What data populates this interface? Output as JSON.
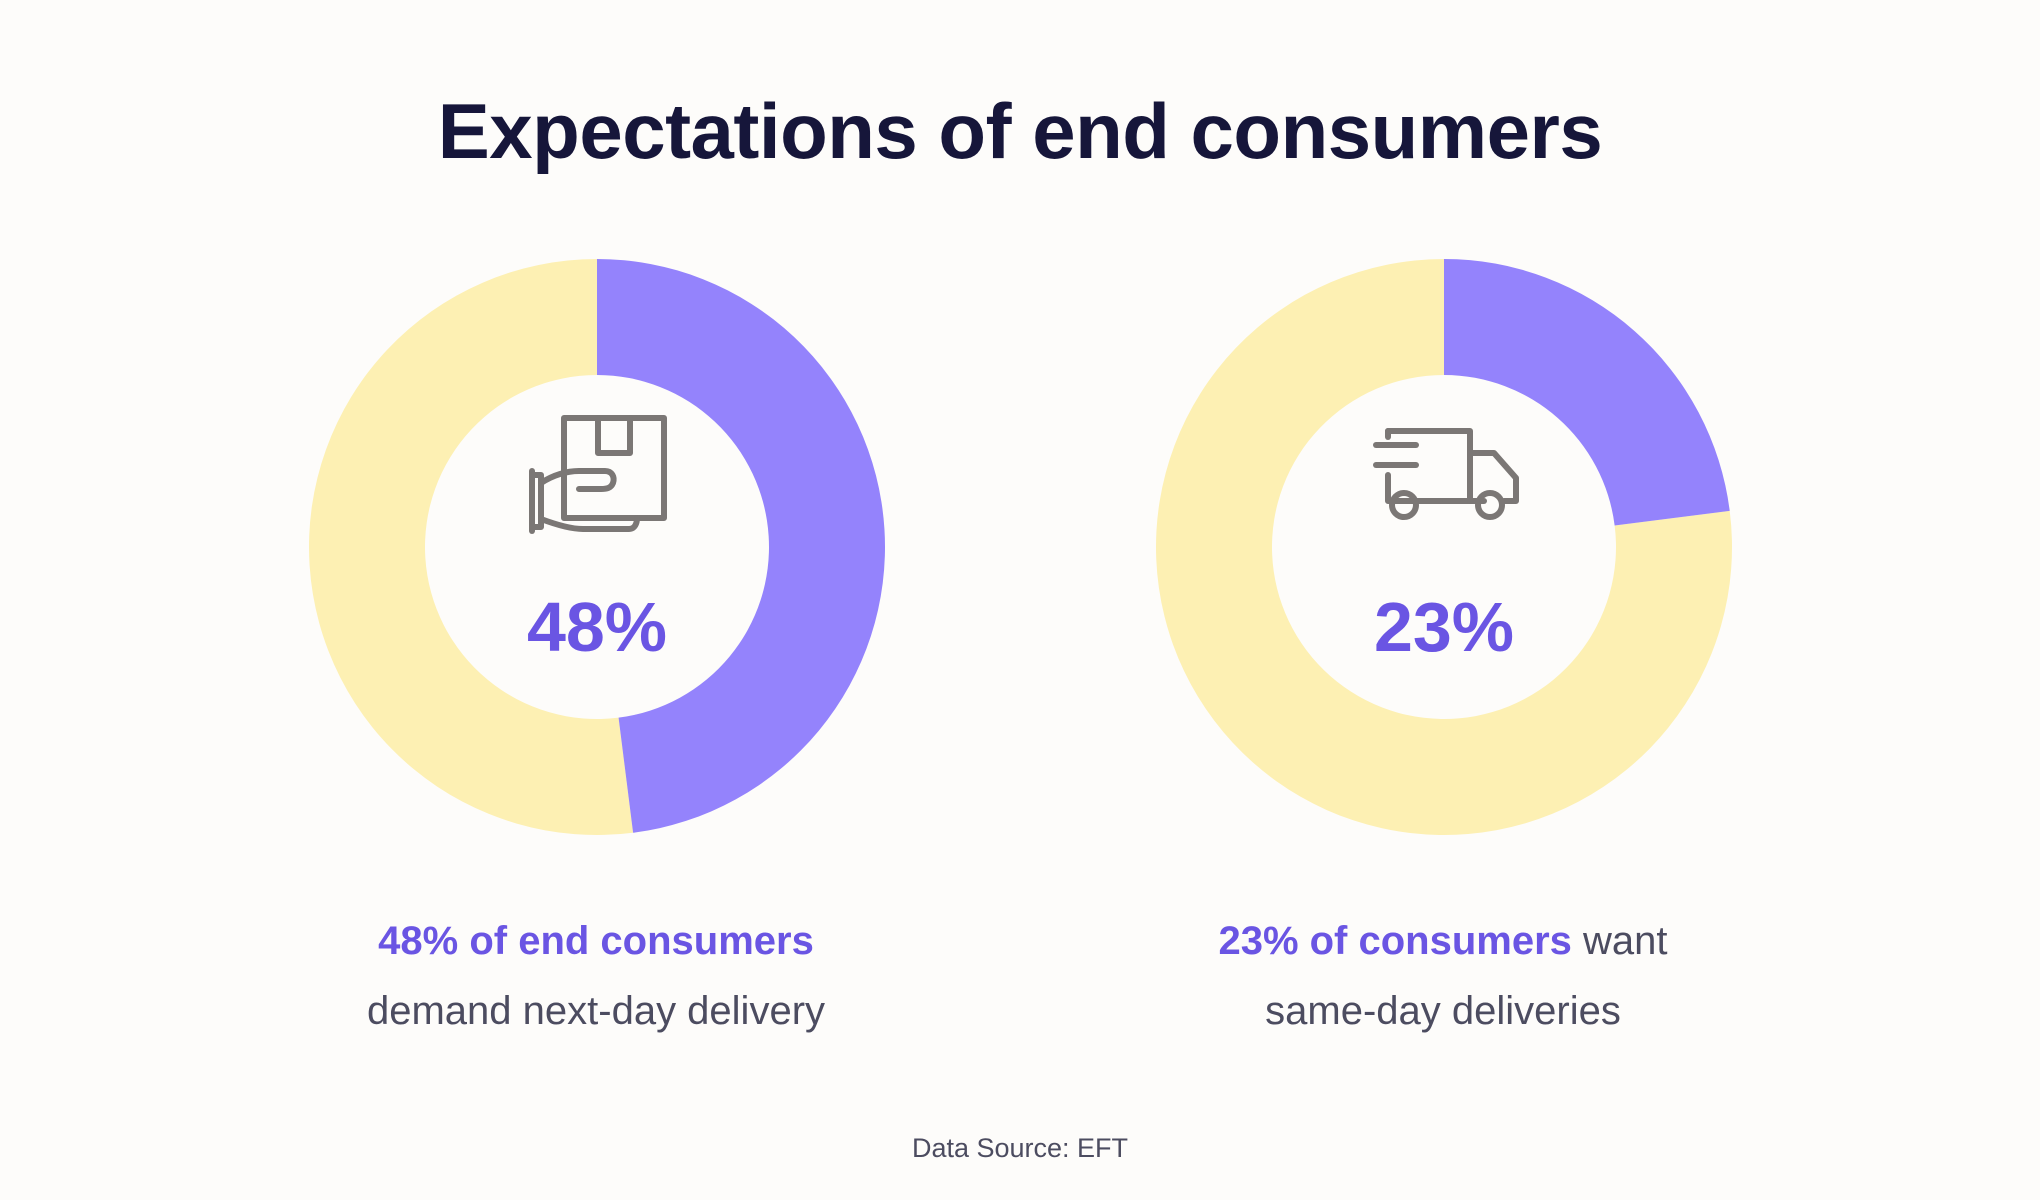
{
  "title": "Expectations of end consumers",
  "colors": {
    "accent": "#9483fc",
    "remainder": "#fdf0b3",
    "percent_text": "#6a55e3",
    "title_text": "#16163a",
    "body_text": "#4c4c60",
    "icon": "#7b7775",
    "background": "#fdfcfa"
  },
  "chart_data": [
    {
      "type": "pie",
      "value": 48,
      "unit": "%",
      "center_label": "48%",
      "icon": "package-in-hand-icon",
      "caption_highlight": "48% of end consumers",
      "caption_rest": "demand next-day delivery"
    },
    {
      "type": "pie",
      "value": 23,
      "unit": "%",
      "center_label": "23%",
      "icon": "delivery-truck-icon",
      "caption_highlight": "23% of consumers",
      "caption_rest_inline": " want",
      "caption_rest": "same-day deliveries"
    }
  ],
  "source": "Data Source: EFT"
}
